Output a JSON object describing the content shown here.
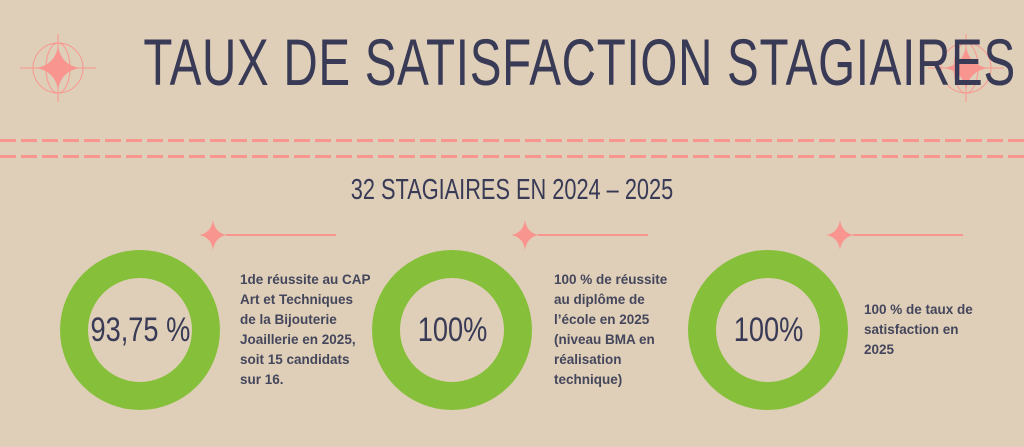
{
  "title": "TAUX DE SATISFACTION STAGIAIRES",
  "subtitle": "32 STAGIAIRES EN 2024 – 2025",
  "colors": {
    "background": "#dfcfb8",
    "text": "#383a56",
    "accent": "#f9958f",
    "donut": "#86bf3a"
  },
  "stats": [
    {
      "value": "93,75 %",
      "percent": 93.75,
      "lines": [
        "1de réussite au CAP",
        "Art et Techniques",
        "de la Bijouterie",
        "Joaillerie en 2025,",
        "soit 15 candidats",
        "sur 16."
      ]
    },
    {
      "value": "100%",
      "percent": 100,
      "lines": [
        "100 % de réussite",
        "au diplôme de",
        "l’école en 2025",
        "(niveau BMA en",
        "réalisation",
        "technique)"
      ]
    },
    {
      "value": "100%",
      "percent": 100,
      "lines": [
        "100 % de taux de",
        "satisfaction en",
        "2025"
      ]
    }
  ]
}
